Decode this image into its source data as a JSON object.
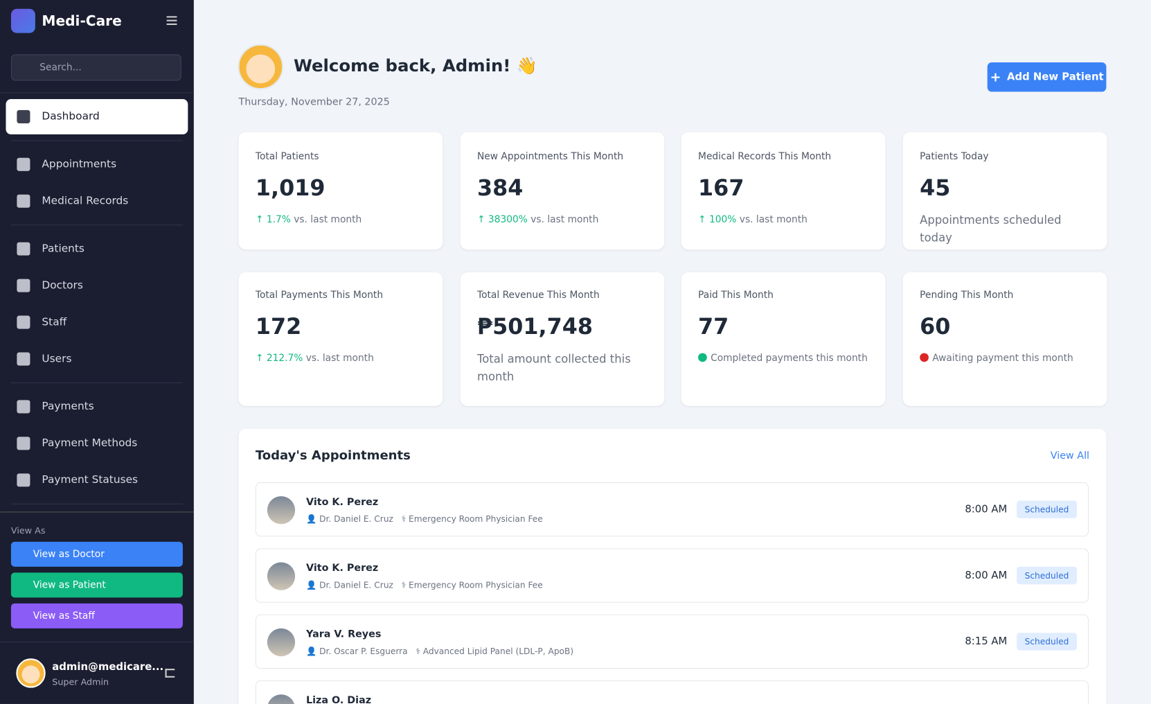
{
  "sidebar": {
    "brand": "Medi-Care",
    "search_placeholder": "Search...",
    "nav": [
      [
        "Dashboard"
      ],
      [
        "Appointments",
        "Medical Records"
      ],
      [
        "Patients",
        "Doctors",
        "Staff",
        "Users"
      ],
      [
        "Payments",
        "Payment Methods",
        "Payment Statuses"
      ]
    ],
    "view_as": {
      "label": "View As",
      "buttons": [
        "View as Doctor",
        "View as Patient",
        "View as Staff"
      ]
    },
    "user": {
      "email": "admin@medicare...",
      "role": "Super Admin"
    }
  },
  "header": {
    "title": "Welcome back, Admin! 👋",
    "date": "Thursday, November 27, 2025",
    "button": "Add New Patient"
  },
  "stats": [
    {
      "label": "Total Patients",
      "value": "1,019",
      "change": "1.7%",
      "note": "vs. last month"
    },
    {
      "label": "New Appointments This Month",
      "value": "384",
      "change": "38300%",
      "note": "vs. last month"
    },
    {
      "label": "Medical Records This Month",
      "value": "167",
      "change": "100%",
      "note": "vs. last month"
    },
    {
      "label": "Patients Today",
      "value": "45",
      "note": "Appointments scheduled today"
    },
    {
      "label": "Total Payments This Month",
      "value": "172",
      "change": "212.7%",
      "note": "vs. last month"
    },
    {
      "label": "Total Revenue This Month",
      "value": "₱501,748",
      "note": "Total amount collected this month"
    },
    {
      "label": "Paid This Month",
      "value": "77",
      "note": "Completed payments this month"
    },
    {
      "label": "Pending This Month",
      "value": "60",
      "note": "Awaiting payment this month"
    }
  ],
  "appointments": {
    "title": "Today's Appointments",
    "view_all": "View All",
    "items": [
      {
        "name": "Vito K. Perez",
        "doctor": "Dr. Daniel E. Cruz",
        "service": "Emergency Room Physician Fee",
        "time": "8:00 AM",
        "status": "Scheduled"
      },
      {
        "name": "Vito K. Perez",
        "doctor": "Dr. Daniel E. Cruz",
        "service": "Emergency Room Physician Fee",
        "time": "8:00 AM",
        "status": "Scheduled"
      },
      {
        "name": "Yara V. Reyes",
        "doctor": "Dr. Oscar P. Esguerra",
        "service": "Advanced Lipid Panel (LDL-P, ApoB)",
        "time": "8:15 AM",
        "status": "Scheduled"
      },
      {
        "name": "Liza O. Diaz"
      }
    ]
  }
}
